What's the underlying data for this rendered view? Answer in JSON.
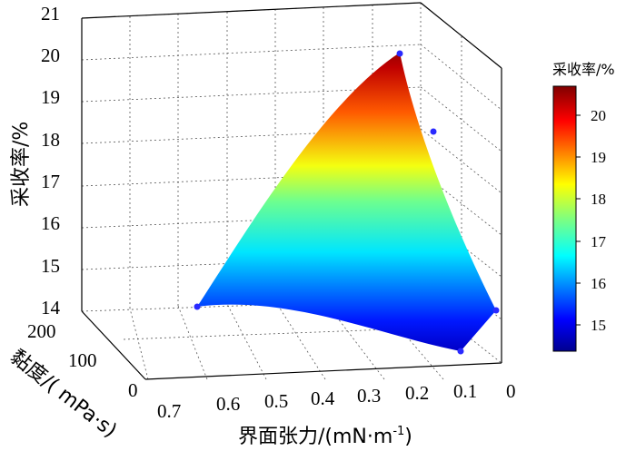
{
  "chart_data": {
    "type": "surface3d",
    "zlabel": "采收率/%",
    "ylabel": "黏度/( mPa·s)",
    "xlabel": "界面张力/(mN·m",
    "xlabel_sup": "-1",
    "xlabel_end": ")",
    "x_ticks": [
      "0.7",
      "0.6",
      "0.5",
      "0.4",
      "0.3",
      "0.2",
      "0.1",
      "0"
    ],
    "y_ticks": [
      "0",
      "100",
      "200"
    ],
    "z_ticks": [
      "14",
      "15",
      "16",
      "17",
      "18",
      "19",
      "20",
      "21"
    ],
    "xlim": [
      0,
      0.7
    ],
    "ylim": [
      0,
      200
    ],
    "zlim": [
      14,
      21
    ],
    "colorbar": {
      "title": "采收率/%",
      "ticks": [
        "15",
        "16",
        "17",
        "18",
        "19",
        "20"
      ],
      "range": [
        14.3,
        20.7
      ]
    },
    "points": [
      {
        "ift": 0.65,
        "viscosity": 0,
        "recovery": 14.1
      },
      {
        "ift": 0.25,
        "viscosity": 200,
        "recovery": 20.6
      },
      {
        "ift": 0.001,
        "viscosity": 200,
        "recovery": 18.3
      },
      {
        "ift": 0.001,
        "viscosity": 0,
        "recovery": 14.3
      },
      {
        "ift": 0.001,
        "viscosity": 100,
        "recovery": 14.0
      }
    ]
  }
}
